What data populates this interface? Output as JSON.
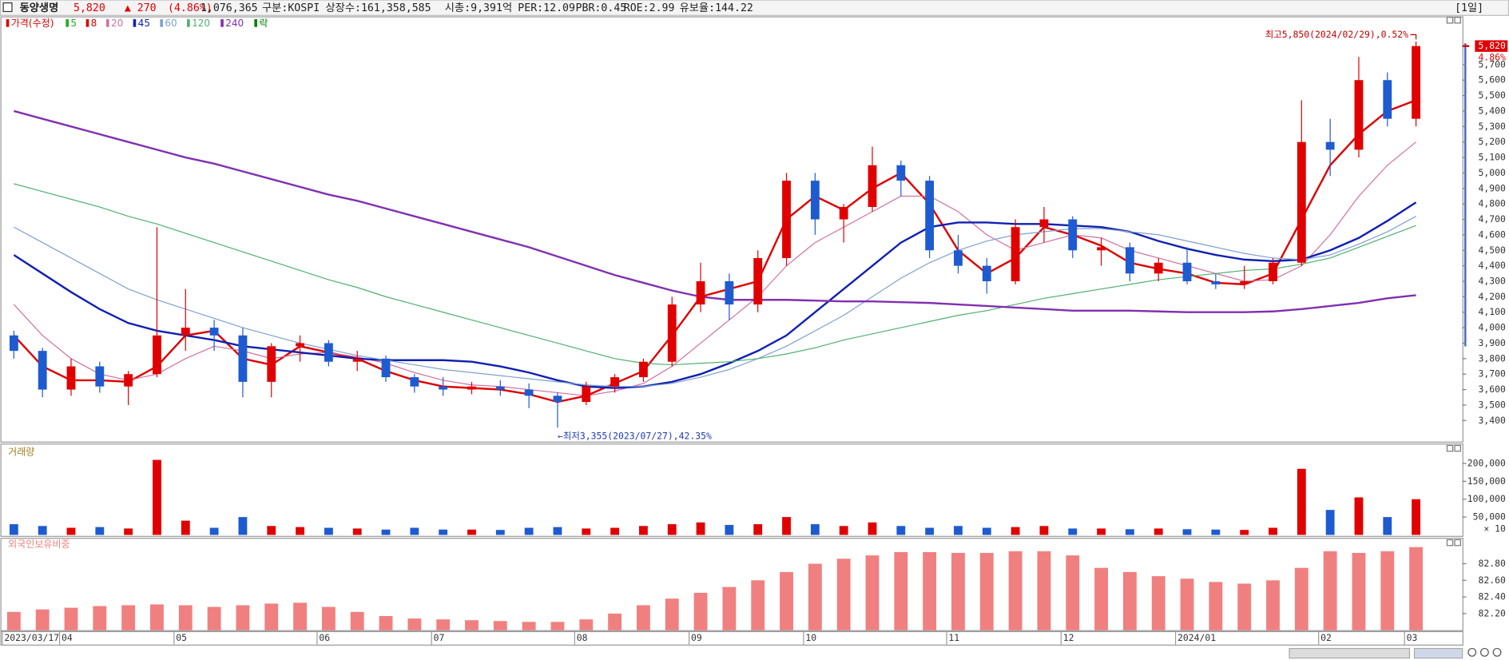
{
  "header": {
    "name": "동양생명",
    "price": "5,820",
    "change": "▲ 270",
    "change_pct": "(4.86%)",
    "volume": "1,076,365",
    "market": "구분:KOSPI",
    "shares": "상장수:161,358,585",
    "cap": "시총:9,391억",
    "per": "PER:12.09",
    "pbr": "PBR:0.45",
    "roe": "ROE:2.99",
    "reserve": "유보율:144.22",
    "period": "[1일]"
  },
  "chart_data": [
    {
      "type": "candlestick",
      "price_label": "가격(수정)",
      "price_color": "#e00000",
      "lock_label": "락",
      "lock_color": "#008000",
      "up_color": "#e00000",
      "down_color": "#1e5bd0",
      "categories": [
        "2023/03/17",
        null,
        "04",
        null,
        null,
        null,
        "05",
        null,
        null,
        null,
        null,
        "06",
        null,
        null,
        null,
        "07",
        null,
        null,
        null,
        null,
        "08",
        null,
        null,
        null,
        "09",
        null,
        null,
        null,
        "10",
        null,
        null,
        null,
        null,
        "11",
        null,
        null,
        null,
        "12",
        null,
        null,
        null,
        "2024/01",
        null,
        null,
        null,
        null,
        "02",
        null,
        null,
        "03"
      ],
      "open": [
        3950,
        3850,
        3600,
        3750,
        3620,
        3700,
        3950,
        4000,
        3950,
        3650,
        3880,
        3900,
        3780,
        3800,
        3680,
        3620,
        3600,
        3620,
        3600,
        3560,
        3520,
        3620,
        3680,
        3780,
        4150,
        4300,
        4150,
        4450,
        4950,
        4700,
        4780,
        5050,
        4950,
        4500,
        4400,
        4300,
        4650,
        4700,
        4500,
        4520,
        4350,
        4420,
        4300,
        4280,
        4300,
        4420,
        5200,
        5150,
        5600,
        5350
      ],
      "high": [
        3980,
        3870,
        3800,
        3780,
        3720,
        4650,
        4250,
        4050,
        4000,
        3900,
        3950,
        3920,
        3850,
        3820,
        3700,
        3680,
        3650,
        3660,
        3640,
        3580,
        3650,
        3700,
        3800,
        4200,
        4420,
        4350,
        4500,
        5000,
        5000,
        4800,
        5170,
        5080,
        4980,
        4600,
        4450,
        4700,
        4780,
        4720,
        4580,
        4550,
        4450,
        4520,
        4350,
        4400,
        4450,
        5470,
        5350,
        5750,
        5650,
        5850
      ],
      "low": [
        3800,
        3550,
        3560,
        3580,
        3500,
        3680,
        3850,
        3850,
        3550,
        3550,
        3780,
        3750,
        3720,
        3650,
        3580,
        3560,
        3570,
        3560,
        3480,
        3355,
        3500,
        3580,
        3650,
        3750,
        4100,
        4050,
        4100,
        4400,
        4600,
        4550,
        4750,
        4850,
        4450,
        4350,
        4220,
        4280,
        4550,
        4450,
        4400,
        4300,
        4300,
        4280,
        4250,
        4250,
        4280,
        4400,
        4980,
        5100,
        5300,
        5300
      ],
      "close": [
        3850,
        3600,
        3750,
        3620,
        3700,
        3950,
        4000,
        3950,
        3650,
        3880,
        3900,
        3780,
        3800,
        3680,
        3620,
        3600,
        3620,
        3600,
        3560,
        3520,
        3620,
        3680,
        3780,
        4150,
        4300,
        4150,
        4450,
        4950,
        4700,
        4780,
        5050,
        4950,
        4500,
        4400,
        4300,
        4650,
        4700,
        4500,
        4520,
        4350,
        4420,
        4300,
        4280,
        4300,
        4420,
        5200,
        5150,
        5600,
        5350,
        5820
      ],
      "series": [
        {
          "name": "5",
          "color": "#22aa22"
        },
        {
          "name": "8",
          "color": "#dd0000",
          "width": 2,
          "values": [
            3950,
            3750,
            3660,
            3660,
            3650,
            3750,
            3950,
            3980,
            3800,
            3760,
            3880,
            3840,
            3800,
            3720,
            3660,
            3620,
            3610,
            3600,
            3570,
            3520,
            3560,
            3640,
            3720,
            3950,
            4200,
            4250,
            4300,
            4700,
            4850,
            4760,
            4900,
            5000,
            4800,
            4500,
            4350,
            4450,
            4650,
            4600,
            4530,
            4420,
            4380,
            4350,
            4290,
            4280,
            4350,
            4700,
            5050,
            5250,
            5400,
            5470
          ]
        },
        {
          "name": "20",
          "color": "#d070a0",
          "width": 1,
          "values": [
            4150,
            3950,
            3800,
            3700,
            3660,
            3700,
            3800,
            3880,
            3850,
            3800,
            3830,
            3840,
            3810,
            3770,
            3710,
            3660,
            3630,
            3620,
            3600,
            3580,
            3560,
            3590,
            3640,
            3750,
            3900,
            4050,
            4200,
            4400,
            4550,
            4650,
            4750,
            4850,
            4850,
            4750,
            4600,
            4500,
            4550,
            4600,
            4580,
            4500,
            4450,
            4400,
            4350,
            4300,
            4310,
            4400,
            4600,
            4850,
            5050,
            5200
          ]
        },
        {
          "name": "45",
          "color": "#1020b0",
          "width": 2,
          "values": [
            4470,
            4350,
            4230,
            4120,
            4030,
            3980,
            3950,
            3920,
            3880,
            3860,
            3840,
            3820,
            3800,
            3790,
            3790,
            3790,
            3780,
            3750,
            3710,
            3660,
            3620,
            3610,
            3620,
            3650,
            3700,
            3770,
            3850,
            3950,
            4100,
            4250,
            4400,
            4550,
            4650,
            4680,
            4680,
            4670,
            4670,
            4660,
            4650,
            4620,
            4560,
            4510,
            4470,
            4440,
            4430,
            4440,
            4500,
            4580,
            4690,
            4810
          ]
        },
        {
          "name": "60",
          "color": "#7fa0d0",
          "width": 1,
          "values": [
            4650,
            4550,
            4450,
            4350,
            4250,
            4180,
            4120,
            4060,
            4000,
            3950,
            3900,
            3860,
            3820,
            3790,
            3760,
            3730,
            3710,
            3690,
            3670,
            3650,
            3630,
            3620,
            3620,
            3640,
            3680,
            3730,
            3800,
            3880,
            3980,
            4080,
            4200,
            4320,
            4420,
            4500,
            4560,
            4600,
            4620,
            4640,
            4640,
            4620,
            4600,
            4560,
            4520,
            4480,
            4450,
            4440,
            4470,
            4540,
            4620,
            4720
          ]
        },
        {
          "name": "120",
          "color": "#50b070",
          "width": 1,
          "values": [
            4930,
            4880,
            4830,
            4780,
            4720,
            4670,
            4610,
            4550,
            4490,
            4430,
            4370,
            4310,
            4260,
            4200,
            4150,
            4100,
            4050,
            4000,
            3950,
            3900,
            3850,
            3800,
            3770,
            3760,
            3770,
            3780,
            3800,
            3830,
            3870,
            3920,
            3960,
            4000,
            4040,
            4080,
            4110,
            4150,
            4190,
            4220,
            4250,
            4280,
            4310,
            4330,
            4350,
            4370,
            4380,
            4410,
            4450,
            4520,
            4590,
            4660
          ]
        },
        {
          "name": "240",
          "color": "#8030b0",
          "width": 2,
          "values": [
            5400,
            5350,
            5300,
            5250,
            5200,
            5150,
            5100,
            5060,
            5010,
            4960,
            4910,
            4860,
            4820,
            4770,
            4720,
            4670,
            4620,
            4570,
            4520,
            4460,
            4400,
            4340,
            4290,
            4240,
            4200,
            4180,
            4180,
            4180,
            4175,
            4170,
            4170,
            4165,
            4160,
            4150,
            4140,
            4130,
            4120,
            4110,
            4110,
            4110,
            4105,
            4100,
            4100,
            4100,
            4105,
            4120,
            4140,
            4160,
            4190,
            4210
          ]
        }
      ],
      "ylim": [
        3270,
        5900
      ],
      "yticks": [
        {
          "value": 3400,
          "label": "3,400"
        },
        {
          "value": 3500,
          "label": "3,500"
        },
        {
          "value": 3600,
          "label": "3,600"
        },
        {
          "value": 3700,
          "label": "3,700"
        },
        {
          "value": 3800,
          "label": "3,800"
        },
        {
          "value": 3900,
          "label": "3,900"
        },
        {
          "value": 4000,
          "label": "4,000"
        },
        {
          "value": 4100,
          "label": "4,100"
        },
        {
          "value": 4200,
          "label": "4,200"
        },
        {
          "value": 4300,
          "label": "4,300"
        },
        {
          "value": 4400,
          "label": "4,400"
        },
        {
          "value": 4500,
          "label": "4,500"
        },
        {
          "value": 4600,
          "label": "4,600"
        },
        {
          "value": 4700,
          "label": "4,700"
        },
        {
          "value": 4800,
          "label": "4,800"
        },
        {
          "value": 4900,
          "label": "4,900"
        },
        {
          "value": 5000,
          "label": "5,000"
        },
        {
          "value": 5100,
          "label": "5,100"
        },
        {
          "value": 5200,
          "label": "5,200"
        },
        {
          "value": 5300,
          "label": "5,300"
        },
        {
          "value": 5400,
          "label": "5,400"
        },
        {
          "value": 5500,
          "label": "5,500"
        },
        {
          "value": 5600,
          "label": "5,600"
        },
        {
          "value": 5700,
          "label": "5,700"
        }
      ],
      "high_label": "최고5,850(2024/02/29),0.52%",
      "low_label": "←최저3,355(2023/07/27),42.35%",
      "last_price_label": "5,820",
      "last_change_label": "4.86%"
    },
    {
      "type": "bar",
      "title": "거래량",
      "unit_label": "× 10",
      "values": [
        30000,
        25000,
        20000,
        22000,
        18000,
        210000,
        40000,
        20000,
        50000,
        25000,
        22000,
        20000,
        18000,
        15000,
        20000,
        15000,
        15000,
        14000,
        20000,
        22000,
        18000,
        20000,
        25000,
        30000,
        35000,
        28000,
        30000,
        50000,
        30000,
        25000,
        35000,
        25000,
        20000,
        25000,
        20000,
        22000,
        25000,
        18000,
        18000,
        16000,
        18000,
        16000,
        15000,
        14000,
        20000,
        185000,
        70000,
        105000,
        50000,
        100000
      ],
      "ylim": [
        0,
        245000
      ],
      "yticks": [
        {
          "value": 50000,
          "label": "50,000"
        },
        {
          "value": 100000,
          "label": "100,000"
        },
        {
          "value": 150000,
          "label": "150,000"
        },
        {
          "value": 200000,
          "label": "200,000"
        }
      ]
    },
    {
      "type": "bar",
      "title": "외국인보유비중",
      "color": "#f08080",
      "values": [
        82.22,
        82.25,
        82.27,
        82.29,
        82.3,
        82.31,
        82.3,
        82.28,
        82.3,
        82.32,
        82.33,
        82.28,
        82.22,
        82.17,
        82.14,
        82.13,
        82.12,
        82.11,
        82.1,
        82.1,
        82.13,
        82.2,
        82.3,
        82.38,
        82.45,
        82.52,
        82.6,
        82.7,
        82.8,
        82.86,
        82.9,
        82.94,
        82.94,
        82.93,
        82.93,
        82.95,
        82.95,
        82.9,
        82.75,
        82.7,
        82.65,
        82.62,
        82.58,
        82.56,
        82.6,
        82.75,
        82.95,
        82.93,
        82.95,
        83.0
      ],
      "ylim": [
        82.0,
        83.1
      ],
      "yticks": [
        {
          "value": 82.2,
          "label": "82.20"
        },
        {
          "value": 82.4,
          "label": "82.40"
        },
        {
          "value": 82.6,
          "label": "82.60"
        },
        {
          "value": 82.8,
          "label": "82.80"
        }
      ]
    }
  ]
}
